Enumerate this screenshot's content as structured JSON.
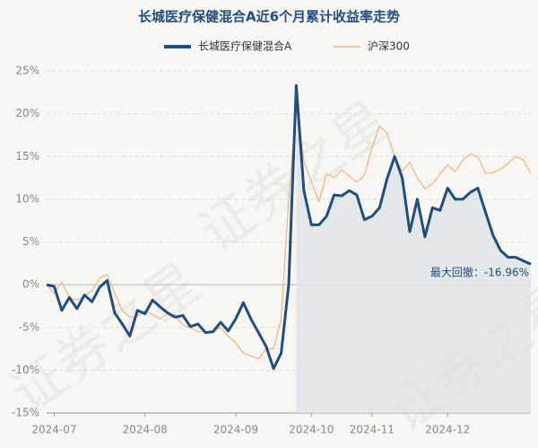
{
  "chart_data": {
    "type": "line",
    "title": "长城医疗保健混合A近6个月累计收益率走势",
    "annotation": "最大回撤：-16.96%",
    "watermark": "证券之星",
    "categories": [
      null,
      "2024-07",
      null,
      null,
      null,
      null,
      null,
      null,
      null,
      null,
      null,
      null,
      null,
      "2024-08",
      null,
      null,
      null,
      null,
      null,
      null,
      null,
      null,
      null,
      null,
      null,
      "2024-09",
      null,
      null,
      null,
      null,
      null,
      null,
      null,
      null,
      null,
      "2024-10",
      null,
      null,
      null,
      null,
      null,
      null,
      null,
      "2024-11",
      null,
      null,
      null,
      null,
      null,
      null,
      null,
      null,
      null,
      "2024-12",
      null,
      null,
      null,
      null,
      null,
      null,
      null,
      null,
      null,
      null,
      null
    ],
    "series": [
      {
        "name": "长城医疗保健混合A",
        "color": "#1f4e7f",
        "values": [
          0,
          -0.2,
          -3,
          -1.5,
          -2.8,
          -1.2,
          -2,
          -0.3,
          0.5,
          -3.3,
          -4.6,
          -6,
          -3,
          -3.4,
          -1.8,
          -2.6,
          -3.3,
          -3.8,
          -3.6,
          -4.9,
          -4.6,
          -5.6,
          -5.5,
          -4.4,
          -5.4,
          -4,
          -2.1,
          -4,
          -5.6,
          -7.2,
          -9.8,
          -8,
          0,
          23.3,
          11,
          7,
          7,
          8,
          10.5,
          10.4,
          11,
          10.5,
          7.6,
          8,
          9,
          12.4,
          15,
          12.5,
          6.2,
          10,
          5.6,
          9,
          8.7,
          11.3,
          10,
          10,
          10.8,
          11.3,
          8.5,
          5.8,
          4,
          3.2,
          3.2,
          2.8,
          2.4
        ]
      },
      {
        "name": "沪深300",
        "color": "#f3b27e",
        "values": [
          0,
          -1,
          0.3,
          -1.5,
          -1.8,
          -1.3,
          -0.7,
          0.8,
          1.2,
          -1,
          -3,
          -3.8,
          -3.7,
          -3,
          -3.5,
          -4,
          -3.3,
          -3.6,
          -4.7,
          -5,
          -5.5,
          -5.5,
          -5.4,
          -5,
          -6,
          -6.8,
          -8,
          -8.3,
          -8.7,
          -7.5,
          -7.5,
          -4,
          10,
          21,
          14.5,
          12,
          9.7,
          13,
          12.5,
          13.4,
          12.7,
          12,
          12.8,
          16,
          18.6,
          17.7,
          15,
          13.3,
          14.3,
          12.5,
          11.2,
          11.8,
          13,
          14,
          13.2,
          14.6,
          15.3,
          15,
          13,
          13.1,
          13.5,
          14.2,
          15,
          14.6,
          13
        ]
      }
    ],
    "ylim": [
      -15,
      25
    ],
    "yticks": [
      {
        "value": -15,
        "label": "-15%"
      },
      {
        "value": -10,
        "label": "-10%"
      },
      {
        "value": -5,
        "label": "-5%"
      },
      {
        "value": 0,
        "label": "0%"
      },
      {
        "value": 5,
        "label": "5%"
      },
      {
        "value": 10,
        "label": "10%"
      },
      {
        "value": 15,
        "label": "15%"
      },
      {
        "value": 20,
        "label": "20%"
      },
      {
        "value": 25,
        "label": "25%"
      }
    ],
    "grid": true
  }
}
